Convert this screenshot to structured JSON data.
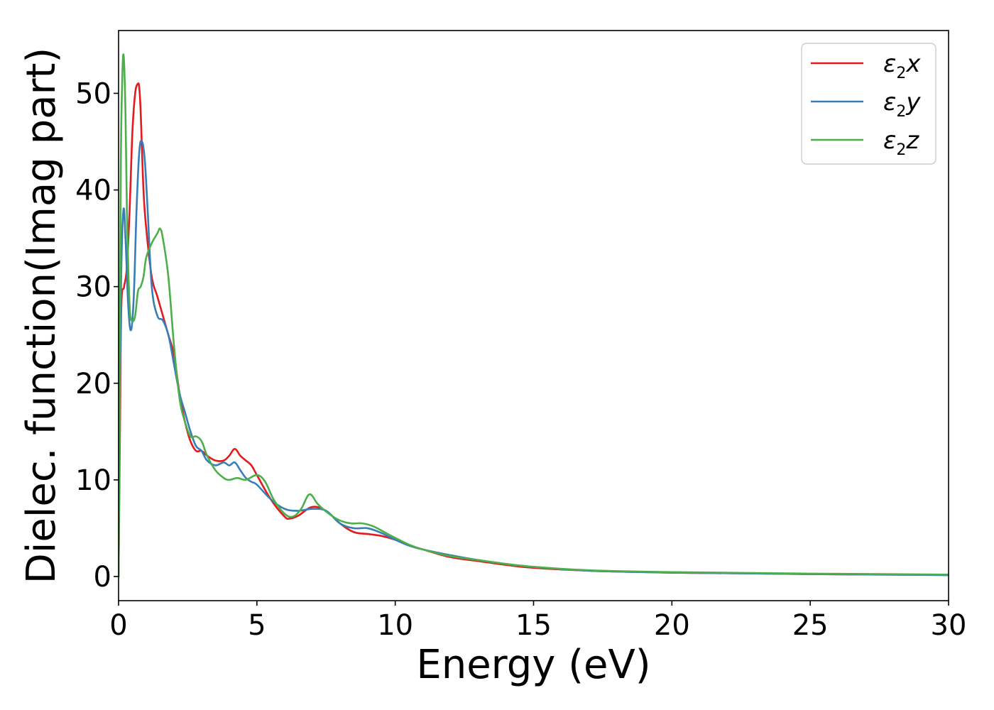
{
  "chart_data": {
    "type": "line",
    "xlabel": "Energy (eV)",
    "ylabel": "Dielec. function(Imag part)",
    "xlim": [
      0,
      30
    ],
    "ylim": [
      -2.5,
      56.5
    ],
    "xticks": [
      0,
      5,
      10,
      15,
      20,
      25,
      30
    ],
    "yticks": [
      0,
      10,
      20,
      30,
      40,
      50
    ],
    "grid": false,
    "legend_position": "top-right",
    "series": [
      {
        "name": "ε2x",
        "legend_base": "ε",
        "legend_sub": "2",
        "legend_suffix": "x",
        "color": "#e41a1c",
        "x": [
          0,
          0.05,
          0.1,
          0.2,
          0.3,
          0.4,
          0.5,
          0.6,
          0.7,
          0.75,
          0.8,
          0.9,
          1.0,
          1.2,
          1.4,
          1.6,
          1.8,
          2.0,
          2.2,
          2.4,
          2.6,
          2.8,
          3.0,
          3.2,
          3.5,
          3.8,
          4.0,
          4.2,
          4.4,
          4.6,
          4.8,
          5.0,
          5.5,
          6.0,
          6.2,
          6.5,
          7.0,
          7.5,
          8.0,
          8.5,
          9.0,
          9.5,
          10.0,
          10.5,
          11.0,
          12.0,
          13.0,
          14.0,
          15.0,
          17.0,
          20.0,
          25.0,
          30.0
        ],
        "y": [
          0,
          15,
          28,
          30,
          32,
          38,
          46,
          50,
          51,
          50.5,
          48,
          40,
          36,
          31,
          29,
          27,
          25,
          23,
          19,
          16,
          14,
          13,
          13,
          12.5,
          12,
          12,
          12.5,
          13.2,
          12.5,
          12,
          11.5,
          10.5,
          8,
          6.2,
          6,
          6.3,
          7.2,
          6.8,
          5.5,
          4.6,
          4.4,
          4.2,
          3.8,
          3.2,
          2.8,
          2,
          1.6,
          1.2,
          0.9,
          0.6,
          0.4,
          0.25,
          0.15
        ]
      },
      {
        "name": "ε2y",
        "legend_base": "ε",
        "legend_sub": "2",
        "legend_suffix": "y",
        "color": "#377eb8",
        "x": [
          0,
          0.05,
          0.1,
          0.18,
          0.25,
          0.35,
          0.45,
          0.55,
          0.65,
          0.75,
          0.85,
          0.95,
          1.05,
          1.2,
          1.4,
          1.6,
          1.8,
          2.0,
          2.2,
          2.4,
          2.6,
          2.8,
          3.0,
          3.2,
          3.5,
          3.8,
          4.0,
          4.2,
          4.4,
          4.6,
          4.8,
          5.0,
          5.5,
          6.0,
          6.5,
          7.0,
          7.5,
          8.0,
          8.5,
          9.0,
          9.5,
          10.0,
          10.5,
          11.0,
          12.0,
          13.0,
          14.0,
          15.0,
          17.0,
          20.0,
          25.0,
          30.0
        ],
        "y": [
          0,
          20,
          32,
          38,
          35,
          28,
          25.5,
          29,
          38,
          44,
          45,
          43,
          38,
          30,
          27,
          26.5,
          25,
          22,
          19,
          17,
          15,
          13.5,
          13,
          12,
          11.5,
          11.8,
          11.5,
          11.8,
          11,
          10.2,
          9.8,
          9.5,
          8,
          7,
          6.8,
          7,
          6.8,
          5.5,
          5,
          5,
          4.5,
          3.8,
          3.2,
          2.8,
          2.2,
          1.7,
          1.3,
          1,
          0.6,
          0.4,
          0.25,
          0.15
        ]
      },
      {
        "name": "ε2z",
        "legend_base": "ε",
        "legend_sub": "2",
        "legend_suffix": "z",
        "color": "#4daf4a",
        "x": [
          0,
          0.04,
          0.08,
          0.12,
          0.18,
          0.25,
          0.3,
          0.4,
          0.5,
          0.6,
          0.7,
          0.8,
          0.9,
          1.0,
          1.2,
          1.4,
          1.5,
          1.6,
          1.8,
          2.0,
          2.2,
          2.4,
          2.6,
          2.8,
          3.0,
          3.2,
          3.5,
          3.8,
          4.0,
          4.3,
          4.6,
          5.0,
          5.3,
          5.6,
          6.0,
          6.3,
          6.6,
          6.9,
          7.2,
          7.6,
          8.0,
          8.4,
          8.8,
          9.2,
          9.6,
          10.0,
          10.5,
          11.0,
          12.0,
          13.0,
          14.0,
          15.0,
          17.0,
          20.0,
          25.0,
          30.0
        ],
        "y": [
          0,
          20,
          42,
          50,
          54,
          48,
          38,
          28,
          26.5,
          27,
          29.5,
          30,
          31,
          33,
          34.5,
          35.5,
          36,
          35,
          31,
          24,
          18.5,
          16,
          14.5,
          14.5,
          14,
          12.5,
          11,
          10.2,
          10,
          10.2,
          10,
          10.5,
          9.8,
          8,
          6.5,
          6.2,
          7,
          8.5,
          7.5,
          6.5,
          5.8,
          5.5,
          5.5,
          5.2,
          4.6,
          4,
          3.3,
          2.8,
          2.1,
          1.7,
          1.3,
          1,
          0.65,
          0.45,
          0.3,
          0.2
        ]
      }
    ]
  }
}
